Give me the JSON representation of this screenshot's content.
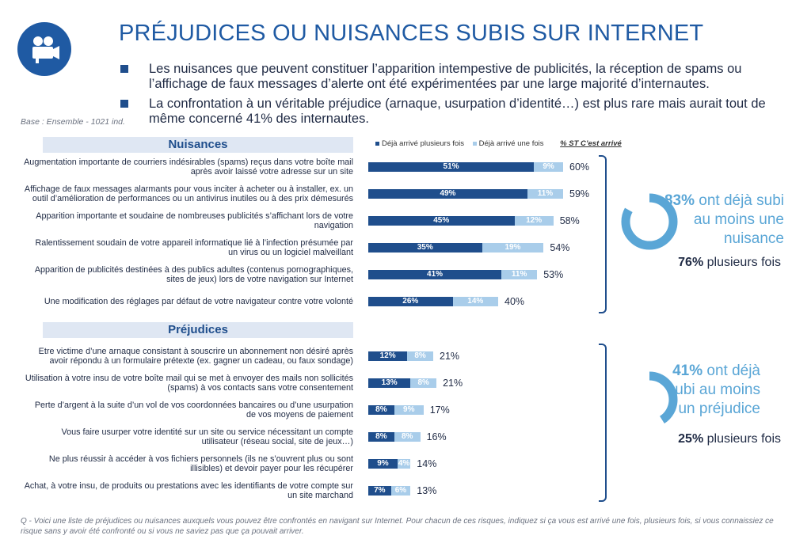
{
  "title": "PRÉJUDICES OU NUISANCES SUBIS SUR INTERNET",
  "bullets": [
    "Les nuisances que peuvent constituer l’apparition intempestive de publicités, la réception de spams ou l’affichage de faux messages d’alerte ont été expérimentées par une large majorité d’internautes.",
    "La confrontation à un véritable préjudice (arnaque, usurpation d’identité…) est plus rare mais aurait tout de même concerné 41% des internautes."
  ],
  "base": "Base : Ensemble - 1021 ind.",
  "icon": "movie-camera-icon",
  "colors": {
    "dark": "#1f4e8c",
    "light": "#a9cdea",
    "accent": "#5aa6d6",
    "title": "#1f5aa3"
  },
  "chart_data": {
    "type": "bar",
    "orientation": "horizontal",
    "stacked": true,
    "legend": {
      "dark": "Déjà arrivé plusieurs fois",
      "light": "Déjà arrivé une fois",
      "total": "% ST C’est arrivé"
    },
    "sections": [
      {
        "name": "Nuisances",
        "rows": [
          {
            "label": "Augmentation importante de courriers indésirables (spams) reçus dans votre boîte mail après avoir laissé votre adresse sur un site",
            "dark": 51,
            "light": 9,
            "total": 60
          },
          {
            "label": "Affichage de faux messages alarmants pour vous inciter à acheter ou à installer, ex. un outil d’amélioration de performances ou un antivirus inutiles ou à des prix démesurés",
            "dark": 49,
            "light": 11,
            "total": 59
          },
          {
            "label": "Apparition importante et soudaine de nombreuses publicités s’affichant lors de votre navigation",
            "dark": 45,
            "light": 12,
            "total": 58
          },
          {
            "label": "Ralentissement soudain de votre appareil informatique lié à l’infection présumée par un virus ou un logiciel malveillant",
            "dark": 35,
            "light": 19,
            "total": 54
          },
          {
            "label": "Apparition de publicités destinées à des publics adultes (contenus pornographiques, sites de jeux) lors de votre navigation sur Internet",
            "dark": 41,
            "light": 11,
            "total": 53
          },
          {
            "label": "Une modification des réglages par défaut de votre navigateur contre votre volonté",
            "dark": 26,
            "light": 14,
            "total": 40
          }
        ],
        "summary": {
          "pct": "83%",
          "text": " ont déjà subi au moins une nuisance",
          "sub_pct": "76%",
          "sub_text": " plusieurs fois",
          "ring_value": 83
        }
      },
      {
        "name": "Préjudices",
        "rows": [
          {
            "label": "Etre victime d’une arnaque consistant à souscrire un abonnement non désiré après avoir répondu à un formulaire prétexte (ex. gagner un cadeau, ou faux sondage)",
            "dark": 12,
            "light": 8,
            "total": 21
          },
          {
            "label": "Utilisation à votre insu de votre boîte mail qui se met à envoyer des mails non sollicités (spams) à vos contacts sans votre consentement",
            "dark": 13,
            "light": 8,
            "total": 21
          },
          {
            "label": "Perte d’argent à la suite d’un vol de vos coordonnées bancaires ou d’une usurpation de vos moyens de paiement",
            "dark": 8,
            "light": 9,
            "total": 17
          },
          {
            "label": "Vous faire usurper votre identité sur un site ou service nécessitant un compte utilisateur (réseau social, site de jeux…)",
            "dark": 8,
            "light": 8,
            "total": 16
          },
          {
            "label": "Ne plus réussir à accéder à vos fichiers personnels (ils ne s’ouvrent plus ou sont illisibles) et devoir payer pour les récupérer",
            "dark": 9,
            "light": 4,
            "total": 14
          },
          {
            "label": "Achat, à votre insu, de produits ou prestations avec les identifiants de votre compte sur un site marchand",
            "dark": 7,
            "light": 6,
            "total": 13
          }
        ],
        "summary": {
          "pct": "41%",
          "text": " ont déjà subi au moins un préjudice",
          "sub_pct": "25%",
          "sub_text": " plusieurs fois",
          "ring_value": 41
        }
      }
    ]
  },
  "footnote": "Q - Voici une liste de préjudices ou nuisances auxquels vous pouvez être confrontés en navigant sur Internet. Pour chacun de ces risques, indiquez si ça vous est arrivé une fois, plusieurs fois, si vous connaissiez ce risque sans y avoir été confronté ou si vous ne saviez pas que ça pouvait arriver."
}
